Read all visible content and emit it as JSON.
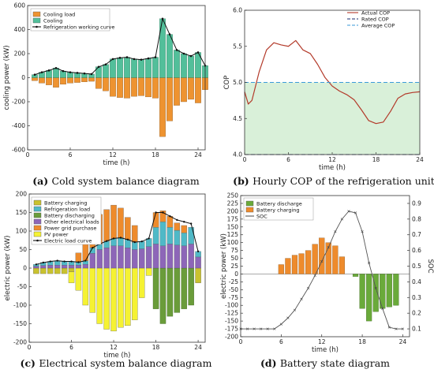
{
  "chart_data": [
    {
      "type": "bar",
      "caption_letter": "(a)",
      "caption": "Cold system balance diagram",
      "xlabel": "time (h)",
      "ylabel": "cooling power (kW)",
      "xlim": [
        0,
        25
      ],
      "ylim": [
        -600,
        600
      ],
      "xticks": [
        0,
        6,
        12,
        18,
        24
      ],
      "yticks": [
        -600,
        -400,
        -200,
        0,
        200,
        400,
        600
      ],
      "colors": {
        "cooling_load": "#ee9330",
        "cooling": "#52bf9a",
        "curve": "#111111"
      },
      "series": [
        {
          "name": "Cooling load",
          "values": [
            -25,
            -45,
            -60,
            -80,
            -55,
            -45,
            -40,
            -35,
            -30,
            -90,
            -110,
            -155,
            -165,
            -170,
            -155,
            -150,
            -160,
            -170,
            -490,
            -360,
            -230,
            -200,
            -180,
            -210,
            -100
          ]
        },
        {
          "name": "Cooling",
          "values": [
            25,
            45,
            60,
            80,
            55,
            45,
            40,
            35,
            30,
            90,
            110,
            155,
            165,
            170,
            155,
            150,
            160,
            170,
            490,
            360,
            230,
            200,
            180,
            210,
            100
          ]
        },
        {
          "name": "Refrigeration working curve",
          "values": [
            25,
            45,
            60,
            80,
            55,
            45,
            40,
            35,
            30,
            90,
            110,
            155,
            165,
            170,
            155,
            150,
            160,
            170,
            490,
            360,
            230,
            200,
            180,
            210,
            100
          ]
        }
      ]
    },
    {
      "type": "line",
      "caption_letter": "(b)",
      "caption": "Hourly COP of the refrigeration unit",
      "xlabel": "time (h)",
      "ylabel": "COP",
      "xlim": [
        0,
        24
      ],
      "ylim": [
        4.0,
        6.0
      ],
      "xticks": [
        0,
        6,
        12,
        18,
        24
      ],
      "yticks": [
        4.0,
        4.5,
        5.0,
        5.5,
        6.0
      ],
      "shaded_band": [
        4.0,
        5.0
      ],
      "colors": {
        "actual": "#b33a2a",
        "rated": "#1a2a6c",
        "average": "#3a9ad9",
        "band": "#d9f0d9"
      },
      "series": [
        {
          "name": "Actual COP",
          "x": [
            0,
            0.5,
            1,
            2,
            3,
            4,
            5,
            6,
            7,
            8,
            9,
            10,
            11,
            12,
            13,
            14,
            15,
            16,
            17,
            18,
            19,
            20,
            21,
            22,
            23,
            24
          ],
          "values": [
            4.87,
            4.7,
            4.75,
            5.15,
            5.45,
            5.55,
            5.52,
            5.5,
            5.58,
            5.45,
            5.4,
            5.25,
            5.07,
            4.95,
            4.88,
            4.83,
            4.76,
            4.62,
            4.47,
            4.43,
            4.45,
            4.6,
            4.78,
            4.84,
            4.86,
            4.87
          ]
        },
        {
          "name": "Rated COP",
          "x": [
            0,
            24
          ],
          "values": [
            4.0,
            4.0
          ]
        },
        {
          "name": "Average COP",
          "x": [
            0,
            24
          ],
          "values": [
            5.0,
            5.0
          ]
        }
      ]
    },
    {
      "type": "bar",
      "caption_letter": "(c)",
      "caption": "Electrical system balance diagram",
      "xlabel": "time (h)",
      "ylabel": "electric power (kW)",
      "xlim": [
        0,
        25
      ],
      "ylim": [
        -200,
        200
      ],
      "xticks": [
        0,
        6,
        12,
        18,
        24
      ],
      "yticks": [
        -200,
        -150,
        -100,
        -50,
        0,
        50,
        100,
        150,
        200
      ],
      "categories": [
        1,
        2,
        3,
        4,
        5,
        6,
        7,
        8,
        9,
        10,
        11,
        12,
        13,
        14,
        15,
        16,
        17,
        18,
        19,
        20,
        21,
        22,
        23,
        24
      ],
      "colors": {
        "battery_charging": "#c9c22e",
        "refrigeration": "#4fb9c7",
        "battery_discharging": "#6a9c3a",
        "other": "#8d66b8",
        "grid": "#ee8b2c",
        "pv": "#f5f233",
        "curve": "#111111"
      },
      "series": [
        {
          "name": "Battery charging",
          "values": [
            -15,
            -15,
            -15,
            -15,
            -15,
            -10,
            0,
            0,
            0,
            0,
            0,
            0,
            0,
            0,
            0,
            0,
            0,
            0,
            0,
            0,
            0,
            0,
            0,
            -40
          ]
        },
        {
          "name": "Refrigeration load",
          "values": [
            5,
            8,
            10,
            12,
            10,
            10,
            8,
            10,
            15,
            15,
            18,
            20,
            22,
            22,
            20,
            20,
            22,
            45,
            65,
            45,
            40,
            35,
            45,
            15
          ]
        },
        {
          "name": "Battery discharging",
          "values": [
            0,
            0,
            0,
            0,
            0,
            0,
            0,
            0,
            0,
            0,
            0,
            0,
            0,
            0,
            0,
            0,
            0,
            -110,
            -150,
            -130,
            -120,
            -110,
            -100,
            0
          ]
        },
        {
          "name": "Other electrical loads",
          "values": [
            5,
            7,
            8,
            8,
            8,
            8,
            8,
            10,
            40,
            50,
            55,
            60,
            60,
            55,
            50,
            52,
            58,
            65,
            60,
            65,
            62,
            60,
            65,
            30
          ]
        },
        {
          "name": "Power grid purchase",
          "values": [
            0,
            0,
            0,
            0,
            0,
            0,
            25,
            50,
            60,
            80,
            85,
            90,
            80,
            60,
            45,
            0,
            0,
            40,
            30,
            30,
            20,
            20,
            0,
            0
          ]
        },
        {
          "name": "PV power",
          "values": [
            0,
            0,
            0,
            0,
            0,
            -30,
            -60,
            -100,
            -120,
            -150,
            -165,
            -170,
            -160,
            -155,
            -140,
            -80,
            -20,
            0,
            0,
            0,
            0,
            0,
            0,
            0
          ]
        },
        {
          "name": "Electric load curve",
          "values": [
            10,
            15,
            18,
            20,
            18,
            18,
            16,
            20,
            55,
            65,
            73,
            80,
            82,
            77,
            70,
            72,
            80,
            150,
            150,
            140,
            130,
            125,
            120,
            45
          ]
        }
      ]
    },
    {
      "type": "bar",
      "caption_letter": "(d)",
      "caption": "Battery state diagram",
      "xlabel": "time (h)",
      "ylabel": "electric power (kW)",
      "y2label": "SOC",
      "xlim": [
        0,
        25
      ],
      "ylim": [
        -200,
        250
      ],
      "y2lim": [
        0.05,
        0.95
      ],
      "xticks": [
        0,
        6,
        12,
        18,
        24
      ],
      "yticks": [
        -200,
        -175,
        -150,
        -125,
        -100,
        -75,
        -50,
        -25,
        0,
        25,
        50,
        75,
        100,
        125,
        150,
        175,
        200,
        225,
        250
      ],
      "y2ticks": [
        0.1,
        0.2,
        0.3,
        0.4,
        0.5,
        0.6,
        0.7,
        0.8,
        0.9
      ],
      "categories": [
        1,
        2,
        3,
        4,
        5,
        6,
        7,
        8,
        9,
        10,
        11,
        12,
        13,
        14,
        15,
        16,
        17,
        18,
        19,
        20,
        21,
        22,
        23,
        24
      ],
      "colors": {
        "discharge": "#6aaa3a",
        "charging": "#ee8b2c",
        "soc": "#555555"
      },
      "series": [
        {
          "name": "Battery discharge",
          "values": [
            0,
            0,
            0,
            0,
            0,
            0,
            0,
            0,
            0,
            0,
            0,
            0,
            0,
            0,
            0,
            0,
            -8,
            -110,
            -150,
            -120,
            -110,
            -105,
            -100,
            0
          ]
        },
        {
          "name": "Battery charging",
          "values": [
            0,
            0,
            0,
            0,
            0,
            30,
            50,
            60,
            65,
            75,
            95,
            115,
            100,
            90,
            55,
            0,
            0,
            0,
            0,
            0,
            0,
            0,
            0,
            0
          ]
        },
        {
          "name": "SOC",
          "x": [
            0,
            1,
            2,
            3,
            4,
            5,
            6,
            7,
            8,
            9,
            10,
            11,
            12,
            13,
            14,
            15,
            16,
            17,
            18,
            19,
            20,
            21,
            22,
            23,
            24
          ],
          "values": [
            0.1,
            0.1,
            0.1,
            0.1,
            0.1,
            0.1,
            0.13,
            0.17,
            0.22,
            0.29,
            0.36,
            0.44,
            0.53,
            0.62,
            0.72,
            0.8,
            0.85,
            0.84,
            0.72,
            0.52,
            0.36,
            0.23,
            0.11,
            0.1,
            0.1
          ]
        }
      ]
    }
  ]
}
